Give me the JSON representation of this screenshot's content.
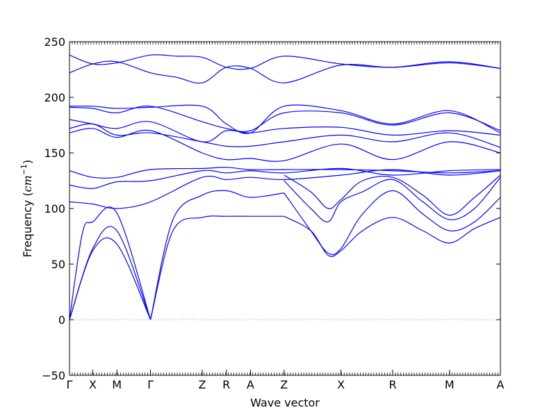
{
  "chart_data": {
    "type": "line",
    "title": "",
    "xlabel": "Wave vector",
    "ylabel_text": "Frequency (",
    "ylabel_unit": "cm",
    "ylabel_exp": "−1",
    "ylabel_close": ")",
    "ylabel": "Frequency (cm^-1)",
    "ylim": [
      -50,
      250
    ],
    "xlim": [
      0,
      5.0
    ],
    "grid": false,
    "line_color": "#0000ff",
    "zero_line_color": "#808080",
    "y_ticks": [
      -50,
      0,
      50,
      100,
      150,
      200,
      250
    ],
    "y_tick_labels": [
      "−50",
      "0",
      "50",
      "100",
      "150",
      "200",
      "250"
    ],
    "k_points": [
      {
        "label": "Γ",
        "x": 0.0
      },
      {
        "label": "X",
        "x": 0.27
      },
      {
        "label": "M",
        "x": 0.55
      },
      {
        "label": "Γ",
        "x": 0.94
      },
      {
        "label": "Z",
        "x": 1.54
      },
      {
        "label": "R",
        "x": 1.82
      },
      {
        "label": "A",
        "x": 2.1
      },
      {
        "label": "Z",
        "x": 2.49
      },
      {
        "label": "X",
        "x": 3.15
      },
      {
        "label": "R",
        "x": 3.75
      },
      {
        "label": "M",
        "x": 4.41
      },
      {
        "label": "A",
        "x": 5.0
      }
    ],
    "series": [
      {
        "x": [
          0,
          0.27,
          0.55,
          0.94
        ],
        "y": [
          0,
          62,
          68,
          0
        ]
      },
      {
        "x": [
          0,
          0.27,
          0.55,
          0.94
        ],
        "y": [
          0,
          64,
          80,
          0
        ]
      },
      {
        "x": [
          0,
          0.15,
          0.27,
          0.55,
          0.94
        ],
        "y": [
          0,
          78,
          88,
          96,
          0
        ]
      },
      {
        "x": [
          0.94,
          1.2,
          1.54,
          1.82,
          2.1,
          2.49
        ],
        "y": [
          0,
          80,
          92,
          93,
          93,
          93
        ]
      },
      {
        "x": [
          0.94,
          1.2,
          1.54,
          1.82,
          2.1,
          2.49
        ],
        "y": [
          0,
          90,
          112,
          116,
          110,
          114
        ]
      },
      {
        "x": [
          2.49,
          2.8,
          3.0,
          3.15,
          3.4,
          3.75,
          4.1,
          4.41,
          4.7,
          5.0
        ],
        "y": [
          93,
          80,
          58,
          62,
          80,
          92,
          80,
          69,
          82,
          92
        ]
      },
      {
        "x": [
          2.49,
          2.8,
          3.0,
          3.15,
          3.4,
          3.75,
          4.1,
          4.41,
          4.7,
          5.0
        ],
        "y": [
          114,
          80,
          60,
          64,
          95,
          116,
          95,
          80,
          88,
          110
        ]
      },
      {
        "x": [
          2.49,
          2.8,
          3.0,
          3.15,
          3.4,
          3.75,
          4.1,
          4.41,
          4.7,
          5.0
        ],
        "y": [
          125,
          100,
          88,
          106,
          115,
          126,
          106,
          90,
          100,
          128
        ]
      },
      {
        "x": [
          2.49,
          2.8,
          3.0,
          3.15,
          3.4,
          3.75,
          4.1,
          4.41,
          4.7,
          5.0
        ],
        "y": [
          130,
          115,
          100,
          108,
          125,
          128,
          112,
          94,
          110,
          130
        ]
      },
      {
        "x": [
          0,
          0.27,
          0.55,
          0.94,
          1.54,
          1.82,
          2.1,
          2.49,
          3.15,
          3.75,
          4.41,
          5.0
        ],
        "y": [
          106,
          104,
          100,
          106,
          128,
          126,
          128,
          126,
          130,
          135,
          130,
          134
        ]
      },
      {
        "x": [
          0,
          0.27,
          0.55,
          0.94,
          1.54,
          1.82,
          2.1,
          2.49,
          3.15,
          3.75,
          4.41,
          5.0
        ],
        "y": [
          121,
          118,
          124,
          125,
          134,
          132,
          134,
          132,
          136,
          130,
          134,
          135
        ]
      },
      {
        "x": [
          0,
          0.27,
          0.55,
          0.94,
          1.54,
          1.82,
          2.1,
          2.49,
          3.15,
          3.75,
          4.41,
          5.0
        ],
        "y": [
          134,
          128,
          128,
          135,
          136,
          137,
          135,
          135,
          135,
          134,
          132,
          134
        ]
      },
      {
        "x": [
          0,
          0.27,
          0.55,
          0.94,
          1.54,
          1.82,
          2.1,
          2.49,
          3.15,
          3.75,
          4.41,
          5.0
        ],
        "y": [
          168,
          172,
          164,
          170,
          150,
          144,
          145,
          143,
          158,
          144,
          160,
          150
        ]
      },
      {
        "x": [
          0,
          0.27,
          0.55,
          0.94,
          1.54,
          1.82,
          2.1,
          2.49,
          3.15,
          3.75,
          4.41,
          5.0
        ],
        "y": [
          172,
          176,
          166,
          168,
          160,
          156,
          156,
          160,
          166,
          160,
          168,
          155
        ]
      },
      {
        "x": [
          0,
          0.27,
          0.55,
          0.94,
          1.54,
          1.82,
          2.1,
          2.49,
          3.15,
          3.75,
          4.41,
          5.0
        ],
        "y": [
          180,
          176,
          172,
          178,
          160,
          170,
          168,
          172,
          173,
          166,
          170,
          166
        ]
      },
      {
        "x": [
          0,
          0.27,
          0.55,
          0.94,
          1.54,
          1.82,
          2.1,
          2.49,
          3.15,
          3.75,
          4.41,
          5.0
        ],
        "y": [
          191,
          190,
          186,
          192,
          178,
          172,
          170,
          186,
          186,
          175,
          186,
          170
        ]
      },
      {
        "x": [
          0,
          0.27,
          0.55,
          0.94,
          1.54,
          1.82,
          2.1,
          2.49,
          3.15,
          3.75,
          4.41,
          5.0
        ],
        "y": [
          192,
          192,
          190,
          191,
          192,
          176,
          168,
          192,
          188,
          176,
          188,
          168
        ]
      },
      {
        "x": [
          0,
          0.27,
          0.55,
          0.94,
          1.24,
          1.54,
          1.82,
          2.1,
          2.49,
          3.15,
          3.75,
          4.41,
          5.0
        ],
        "y": [
          222,
          230,
          232,
          222,
          218,
          213,
          227,
          226,
          213,
          229,
          227,
          232,
          226
        ]
      },
      {
        "x": [
          0,
          0.27,
          0.55,
          0.94,
          1.24,
          1.54,
          1.82,
          2.1,
          2.49,
          3.15,
          3.75,
          4.41,
          5.0
        ],
        "y": [
          238,
          230,
          231,
          238,
          237,
          236,
          227,
          226,
          237,
          230,
          227,
          231,
          226
        ]
      }
    ]
  }
}
